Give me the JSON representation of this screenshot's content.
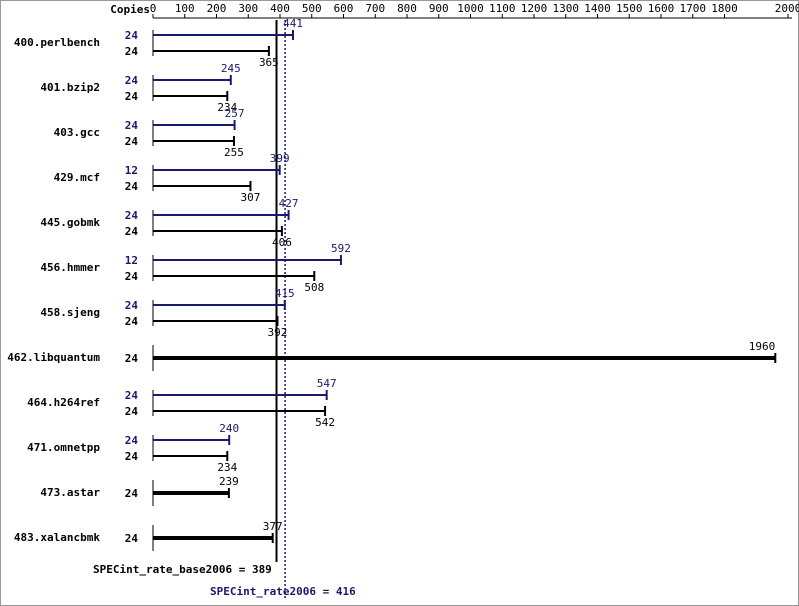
{
  "chart_data": {
    "type": "bar",
    "copies_header": "Copies",
    "categories": [
      "400.perlbench",
      "401.bzip2",
      "403.gcc",
      "429.mcf",
      "445.gobmk",
      "456.hmmer",
      "458.sjeng",
      "462.libquantum",
      "464.h264ref",
      "471.omnetpp",
      "473.astar",
      "483.xalancbmk"
    ],
    "series": [
      {
        "color": "#191970",
        "copies": [
          24,
          24,
          24,
          12,
          24,
          12,
          24,
          null,
          24,
          24,
          null,
          null
        ],
        "values": [
          441,
          245,
          257,
          399,
          427,
          592,
          415,
          null,
          547,
          240,
          null,
          null
        ]
      },
      {
        "color": "#000000",
        "copies": [
          24,
          24,
          24,
          24,
          24,
          24,
          24,
          24,
          24,
          24,
          24,
          24
        ],
        "values": [
          365,
          234,
          255,
          307,
          406,
          508,
          392,
          1960,
          542,
          234,
          239,
          377
        ]
      }
    ],
    "xlim": [
      0,
      2000
    ],
    "xticks": [
      0,
      100,
      200,
      300,
      400,
      500,
      600,
      700,
      800,
      900,
      1000,
      1100,
      1200,
      1300,
      1400,
      1500,
      1600,
      1700,
      1800,
      2000
    ],
    "reference_lines": [
      {
        "label": "SPECint_rate_base2006 = 389",
        "value": 389,
        "color": "#000000"
      },
      {
        "label": "SPECint_rate2006 = 416",
        "value": 416,
        "color": "#191970"
      }
    ]
  }
}
